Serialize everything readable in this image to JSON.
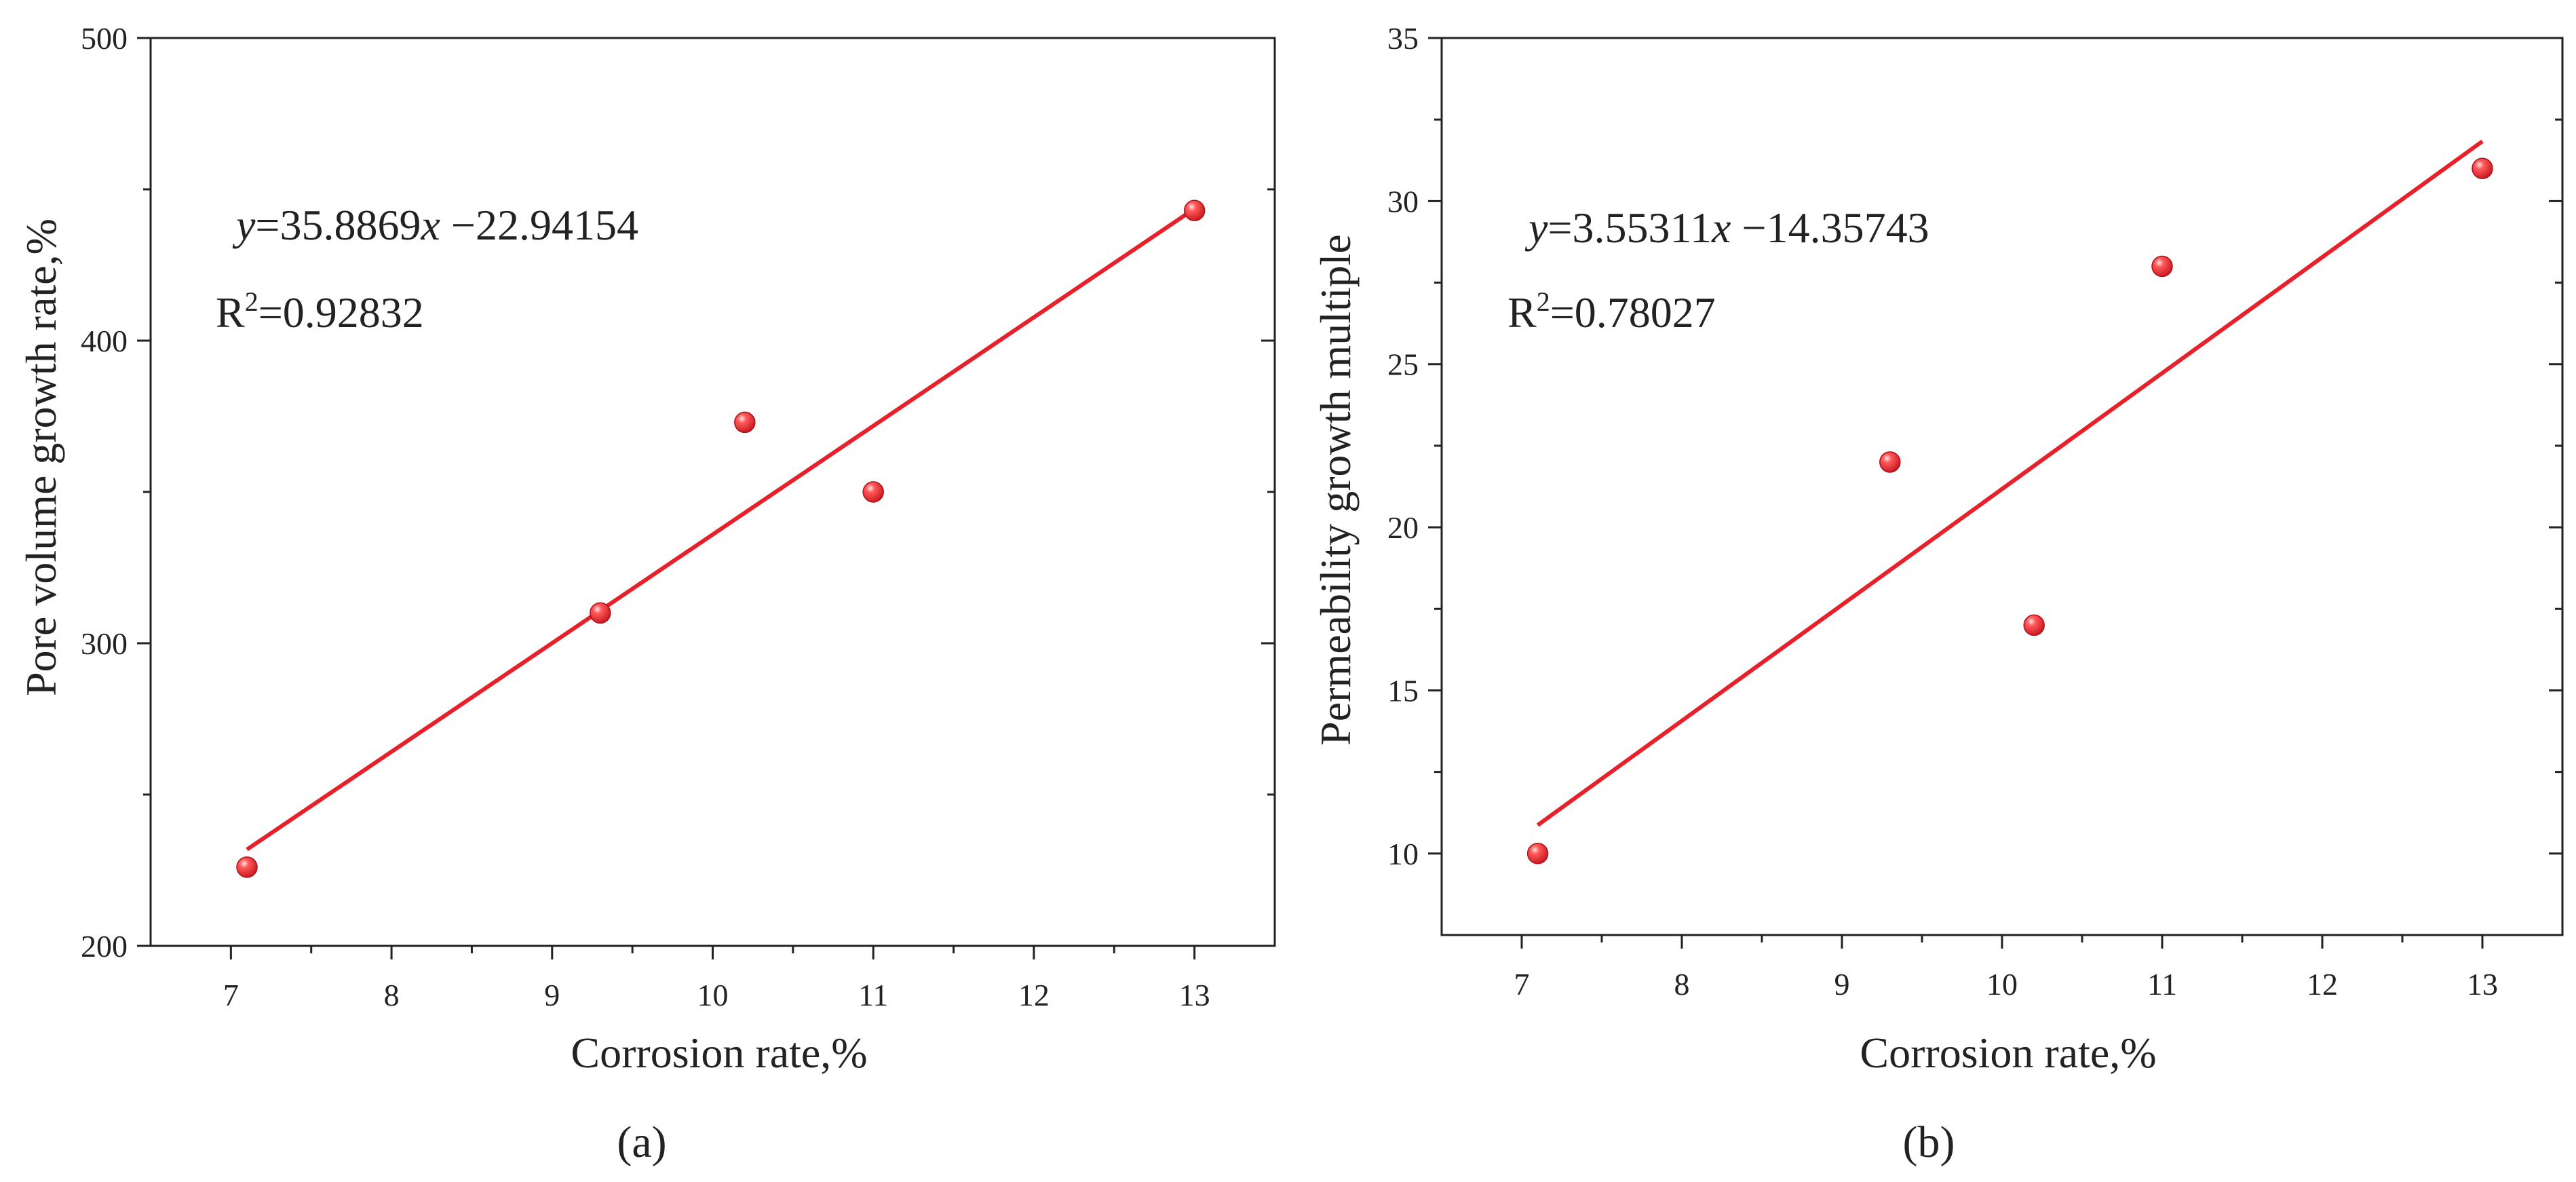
{
  "chart_data": [
    {
      "type": "scatter",
      "panel_label": "(a)",
      "xlabel": "Corrosion rate,%",
      "ylabel": "Pore volume growth rate,%",
      "xlim": [
        6.5,
        13.5
      ],
      "ylim": [
        200,
        500
      ],
      "xticks": [
        7,
        8,
        9,
        10,
        11,
        12,
        13
      ],
      "yticks": [
        200,
        300,
        400,
        500
      ],
      "x": [
        7.1,
        9.3,
        10.2,
        11.0,
        13.0
      ],
      "y": [
        226,
        310,
        373,
        350,
        443
      ],
      "fit": {
        "slope": 35.8869,
        "intercept": -22.94154,
        "x_range": [
          7.1,
          13.0
        ]
      },
      "equation": {
        "y_var": "y",
        "mid": "=35.8869",
        "x_var": "x",
        "tail": " −22.94154"
      },
      "r2": {
        "prefix": "R",
        "sup": "2",
        "value": "=0.92832"
      },
      "colors": {
        "points": "#e8202a",
        "fit_line": "#e8202a",
        "axes": "#222222"
      }
    },
    {
      "type": "scatter",
      "panel_label": "(b)",
      "xlabel": "Corrosion rate,%",
      "ylabel": "Permeability growth multiple",
      "xlim": [
        6.5,
        13.5
      ],
      "ylim": [
        7.5,
        35
      ],
      "xticks": [
        7,
        8,
        9,
        10,
        11,
        12,
        13
      ],
      "yticks": [
        10,
        15,
        20,
        25,
        30,
        35
      ],
      "x": [
        7.1,
        9.3,
        10.2,
        11.0,
        13.0
      ],
      "y": [
        10,
        22,
        17,
        28,
        31
      ],
      "fit": {
        "slope": 3.55311,
        "intercept": -14.35743,
        "x_range": [
          7.1,
          13.0
        ]
      },
      "equation": {
        "y_var": "y",
        "mid": "=3.55311",
        "x_var": "x",
        "tail": " −14.35743"
      },
      "r2": {
        "prefix": "R",
        "sup": "2",
        "value": "=0.78027"
      },
      "colors": {
        "points": "#e8202a",
        "fit_line": "#e8202a",
        "axes": "#222222"
      }
    }
  ]
}
